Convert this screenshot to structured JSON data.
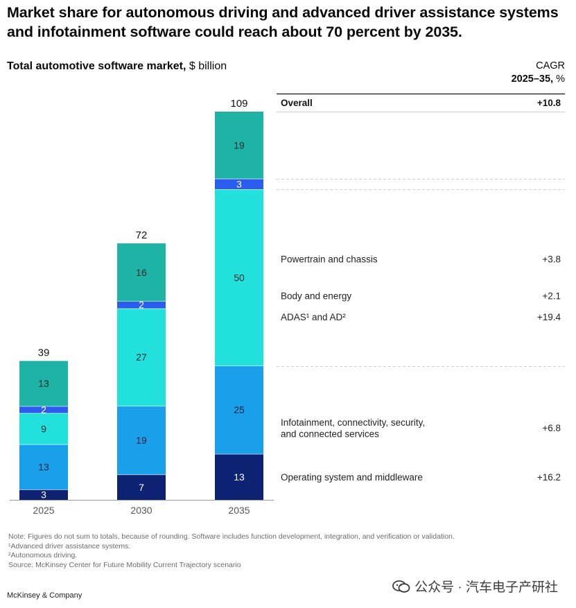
{
  "headline": "Market share for autonomous driving and advanced driver assistance systems and infotainment software could reach about 70 percent by 2035.",
  "subtitle": {
    "bold": "Total automotive software market,",
    "normal": " $ billion"
  },
  "cagr_header": {
    "line1": "CAGR",
    "line2_bold": "2025–35,",
    "line2_normal": " %"
  },
  "chart_data": {
    "type": "bar",
    "stacked": true,
    "categories": [
      "2025",
      "2030",
      "2035"
    ],
    "totals": [
      39,
      72,
      109
    ],
    "ylim": [
      0,
      109
    ],
    "series": [
      {
        "name": "Operating system and middleware",
        "values": [
          3,
          7,
          13
        ],
        "color": "#0f2374",
        "label_color": "#ffffff",
        "cagr": "+16.2"
      },
      {
        "name": "Infotainment, connectivity, security, and connected services",
        "values": [
          13,
          19,
          25
        ],
        "color": "#1aa0ea",
        "label_color": "#0a1f3a",
        "cagr": "+6.8"
      },
      {
        "name": "ADAS¹ and AD²",
        "values": [
          9,
          27,
          50
        ],
        "color": "#22e1dc",
        "label_color": "#0a2a2a",
        "cagr": "+19.4"
      },
      {
        "name": "Body and energy",
        "values": [
          2,
          2,
          3
        ],
        "color": "#2a5ded",
        "label_color": "#ffffff",
        "cagr": "+2.1"
      },
      {
        "name": "Powertrain and chassis",
        "values": [
          13,
          16,
          19
        ],
        "color": "#1fb3a6",
        "label_color": "#0a2a2a",
        "cagr": "+3.8"
      }
    ],
    "overall": {
      "name": "Overall",
      "cagr": "+10.8"
    }
  },
  "footnotes": [
    "Note: Figures do not sum to totals, because of rounding. Software includes function development, integration, and verification or validation.",
    "¹Advanced driver assistance systems.",
    "²Autonomous driving.",
    "Source: McKinsey Center for Future Mobility Current Trajectory scenario"
  ],
  "brand": "McKinsey & Company",
  "watermark": "公众号 · 汽车电子产研社"
}
